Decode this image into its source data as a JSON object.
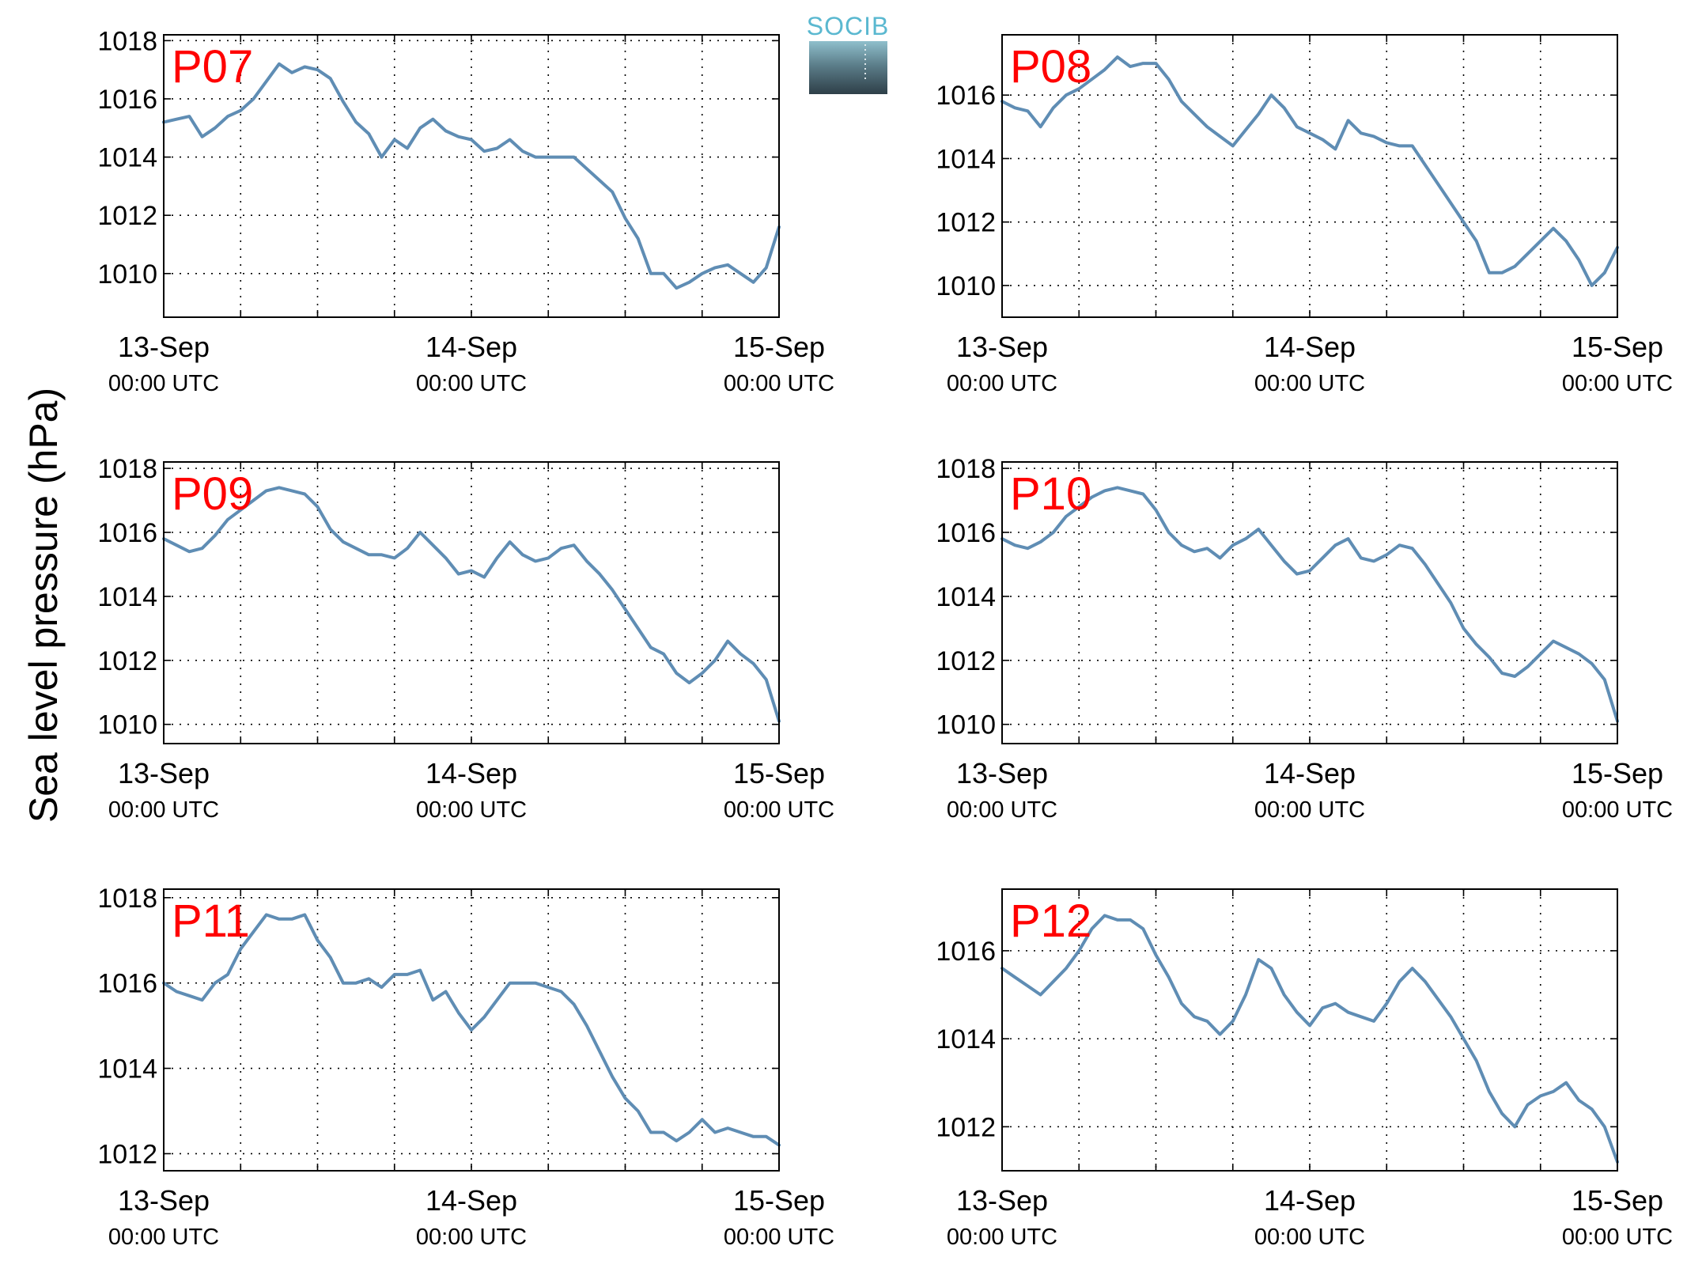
{
  "figure": {
    "ylabel": "Sea level pressure (hPa)",
    "logo_text": "SOCIB",
    "line_color": "#5f8db4",
    "panel_label_color": "#ff0000",
    "grid": true,
    "x_ticks": [
      {
        "date": "13-Sep",
        "time": "00:00 UTC",
        "hours": 0
      },
      {
        "date": "14-Sep",
        "time": "00:00 UTC",
        "hours": 24
      },
      {
        "date": "15-Sep",
        "time": "00:00 UTC",
        "hours": 48
      }
    ]
  },
  "chart_data": [
    {
      "type": "line",
      "title": "P07",
      "xlabel": "",
      "ylabel": "Sea level pressure (hPa)",
      "xlim_hours": [
        0,
        48
      ],
      "ylim": [
        1008.5,
        1018.2
      ],
      "yticks": [
        1010,
        1012,
        1014,
        1016,
        1018
      ],
      "x_hours": [
        0,
        1,
        2,
        3,
        4,
        5,
        6,
        7,
        8,
        9,
        10,
        11,
        12,
        13,
        14,
        15,
        16,
        17,
        18,
        19,
        20,
        21,
        22,
        23,
        24,
        25,
        26,
        27,
        28,
        29,
        30,
        31,
        32,
        33,
        34,
        35,
        36,
        37,
        38,
        39,
        40,
        41,
        42,
        43,
        44,
        45,
        46,
        47,
        48
      ],
      "values": [
        1015.2,
        1015.3,
        1015.4,
        1014.7,
        1015.0,
        1015.4,
        1015.6,
        1016.0,
        1016.6,
        1017.2,
        1016.9,
        1017.1,
        1017.0,
        1016.7,
        1015.9,
        1015.2,
        1014.8,
        1014.0,
        1014.6,
        1014.3,
        1015.0,
        1015.3,
        1014.9,
        1014.7,
        1014.6,
        1014.2,
        1014.3,
        1014.6,
        1014.2,
        1014.0,
        1014.0,
        1014.0,
        1014.0,
        1013.6,
        1013.2,
        1012.8,
        1011.9,
        1011.2,
        1010.0,
        1010.0,
        1009.5,
        1009.7,
        1010.0,
        1010.2,
        1010.3,
        1010.0,
        1009.7,
        1010.2,
        1011.6
      ]
    },
    {
      "type": "line",
      "title": "P08",
      "xlabel": "",
      "ylabel": "Sea level pressure (hPa)",
      "xlim_hours": [
        0,
        48
      ],
      "ylim": [
        1009.0,
        1017.9
      ],
      "yticks": [
        1010,
        1012,
        1014,
        1016
      ],
      "x_hours": [
        0,
        1,
        2,
        3,
        4,
        5,
        6,
        7,
        8,
        9,
        10,
        11,
        12,
        13,
        14,
        15,
        16,
        17,
        18,
        19,
        20,
        21,
        22,
        23,
        24,
        25,
        26,
        27,
        28,
        29,
        30,
        31,
        32,
        33,
        34,
        35,
        36,
        37,
        38,
        39,
        40,
        41,
        42,
        43,
        44,
        45,
        46,
        47,
        48
      ],
      "values": [
        1015.8,
        1015.6,
        1015.5,
        1015.0,
        1015.6,
        1016.0,
        1016.2,
        1016.5,
        1016.8,
        1017.2,
        1016.9,
        1017.0,
        1017.0,
        1016.5,
        1015.8,
        1015.4,
        1015.0,
        1014.7,
        1014.4,
        1014.9,
        1015.4,
        1016.0,
        1015.6,
        1015.0,
        1014.8,
        1014.6,
        1014.3,
        1015.2,
        1014.8,
        1014.7,
        1014.5,
        1014.4,
        1014.4,
        1013.8,
        1013.2,
        1012.6,
        1012.0,
        1011.4,
        1010.4,
        1010.4,
        1010.6,
        1011.0,
        1011.4,
        1011.8,
        1011.4,
        1010.8,
        1010.0,
        1010.4,
        1011.2
      ]
    },
    {
      "type": "line",
      "title": "P09",
      "xlabel": "",
      "ylabel": "Sea level pressure (hPa)",
      "xlim_hours": [
        0,
        48
      ],
      "ylim": [
        1009.4,
        1018.2
      ],
      "yticks": [
        1010,
        1012,
        1014,
        1016,
        1018
      ],
      "x_hours": [
        0,
        1,
        2,
        3,
        4,
        5,
        6,
        7,
        8,
        9,
        10,
        11,
        12,
        13,
        14,
        15,
        16,
        17,
        18,
        19,
        20,
        21,
        22,
        23,
        24,
        25,
        26,
        27,
        28,
        29,
        30,
        31,
        32,
        33,
        34,
        35,
        36,
        37,
        38,
        39,
        40,
        41,
        42,
        43,
        44,
        45,
        46,
        47,
        48
      ],
      "values": [
        1015.8,
        1015.6,
        1015.4,
        1015.5,
        1015.9,
        1016.4,
        1016.7,
        1017.0,
        1017.3,
        1017.4,
        1017.3,
        1017.2,
        1016.8,
        1016.1,
        1015.7,
        1015.5,
        1015.3,
        1015.3,
        1015.2,
        1015.5,
        1016.0,
        1015.6,
        1015.2,
        1014.7,
        1014.8,
        1014.6,
        1015.2,
        1015.7,
        1015.3,
        1015.1,
        1015.2,
        1015.5,
        1015.6,
        1015.1,
        1014.7,
        1014.2,
        1013.6,
        1013.0,
        1012.4,
        1012.2,
        1011.6,
        1011.3,
        1011.6,
        1012.0,
        1012.6,
        1012.2,
        1011.9,
        1011.4,
        1010.1
      ]
    },
    {
      "type": "line",
      "title": "P10",
      "xlabel": "",
      "ylabel": "Sea level pressure (hPa)",
      "xlim_hours": [
        0,
        48
      ],
      "ylim": [
        1009.4,
        1018.2
      ],
      "yticks": [
        1010,
        1012,
        1014,
        1016,
        1018
      ],
      "x_hours": [
        0,
        1,
        2,
        3,
        4,
        5,
        6,
        7,
        8,
        9,
        10,
        11,
        12,
        13,
        14,
        15,
        16,
        17,
        18,
        19,
        20,
        21,
        22,
        23,
        24,
        25,
        26,
        27,
        28,
        29,
        30,
        31,
        32,
        33,
        34,
        35,
        36,
        37,
        38,
        39,
        40,
        41,
        42,
        43,
        44,
        45,
        46,
        47,
        48
      ],
      "values": [
        1015.8,
        1015.6,
        1015.5,
        1015.7,
        1016.0,
        1016.5,
        1016.8,
        1017.1,
        1017.3,
        1017.4,
        1017.3,
        1017.2,
        1016.7,
        1016.0,
        1015.6,
        1015.4,
        1015.5,
        1015.2,
        1015.6,
        1015.8,
        1016.1,
        1015.6,
        1015.1,
        1014.7,
        1014.8,
        1015.2,
        1015.6,
        1015.8,
        1015.2,
        1015.1,
        1015.3,
        1015.6,
        1015.5,
        1015.0,
        1014.4,
        1013.8,
        1013.0,
        1012.5,
        1012.1,
        1011.6,
        1011.5,
        1011.8,
        1012.2,
        1012.6,
        1012.4,
        1012.2,
        1011.9,
        1011.4,
        1010.1
      ]
    },
    {
      "type": "line",
      "title": "P11",
      "xlabel": "",
      "ylabel": "Sea level pressure (hPa)",
      "xlim_hours": [
        0,
        48
      ],
      "ylim": [
        1011.6,
        1018.2
      ],
      "yticks": [
        1012,
        1014,
        1016,
        1018
      ],
      "x_hours": [
        0,
        1,
        2,
        3,
        4,
        5,
        6,
        7,
        8,
        9,
        10,
        11,
        12,
        13,
        14,
        15,
        16,
        17,
        18,
        19,
        20,
        21,
        22,
        23,
        24,
        25,
        26,
        27,
        28,
        29,
        30,
        31,
        32,
        33,
        34,
        35,
        36,
        37,
        38,
        39,
        40,
        41,
        42,
        43,
        44,
        45,
        46,
        47,
        48
      ],
      "values": [
        1016.0,
        1015.8,
        1015.7,
        1015.6,
        1016.0,
        1016.2,
        1016.8,
        1017.2,
        1017.6,
        1017.5,
        1017.5,
        1017.6,
        1017.0,
        1016.6,
        1016.0,
        1016.0,
        1016.1,
        1015.9,
        1016.2,
        1016.2,
        1016.3,
        1015.6,
        1015.8,
        1015.3,
        1014.9,
        1015.2,
        1015.6,
        1016.0,
        1016.0,
        1016.0,
        1015.9,
        1015.8,
        1015.5,
        1015.0,
        1014.4,
        1013.8,
        1013.3,
        1013.0,
        1012.5,
        1012.5,
        1012.3,
        1012.5,
        1012.8,
        1012.5,
        1012.6,
        1012.5,
        1012.4,
        1012.4,
        1012.2
      ]
    },
    {
      "type": "line",
      "title": "P12",
      "xlabel": "",
      "ylabel": "Sea level pressure (hPa)",
      "xlim_hours": [
        0,
        48
      ],
      "ylim": [
        1011.0,
        1017.4
      ],
      "yticks": [
        1012,
        1014,
        1016
      ],
      "x_hours": [
        0,
        1,
        2,
        3,
        4,
        5,
        6,
        7,
        8,
        9,
        10,
        11,
        12,
        13,
        14,
        15,
        16,
        17,
        18,
        19,
        20,
        21,
        22,
        23,
        24,
        25,
        26,
        27,
        28,
        29,
        30,
        31,
        32,
        33,
        34,
        35,
        36,
        37,
        38,
        39,
        40,
        41,
        42,
        43,
        44,
        45,
        46,
        47,
        48
      ],
      "values": [
        1015.6,
        1015.4,
        1015.2,
        1015.0,
        1015.3,
        1015.6,
        1016.0,
        1016.5,
        1016.8,
        1016.7,
        1016.7,
        1016.5,
        1015.9,
        1015.4,
        1014.8,
        1014.5,
        1014.4,
        1014.1,
        1014.4,
        1015.0,
        1015.8,
        1015.6,
        1015.0,
        1014.6,
        1014.3,
        1014.7,
        1014.8,
        1014.6,
        1014.5,
        1014.4,
        1014.8,
        1015.3,
        1015.6,
        1015.3,
        1014.9,
        1014.5,
        1014.0,
        1013.5,
        1012.8,
        1012.3,
        1012.0,
        1012.5,
        1012.7,
        1012.8,
        1013.0,
        1012.6,
        1012.4,
        1012.0,
        1011.2
      ]
    }
  ]
}
